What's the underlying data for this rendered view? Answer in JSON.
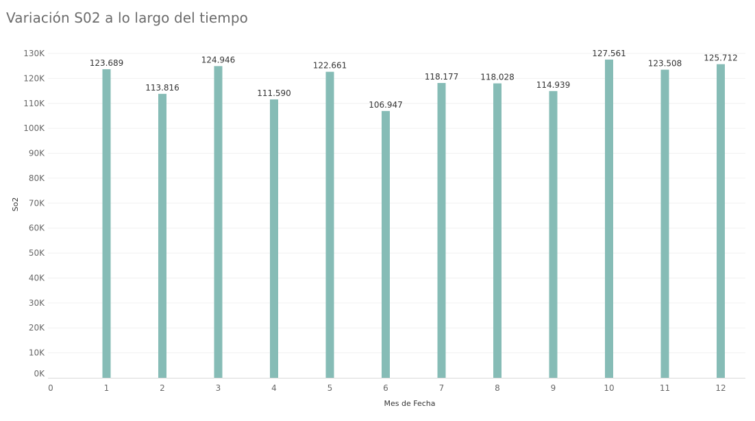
{
  "chart_data": {
    "type": "bar",
    "title": "Variación S02 a lo largo del tiempo",
    "xlabel": "Mes de Fecha",
    "ylabel": "So2",
    "x_ticks": [
      "0",
      "1",
      "2",
      "3",
      "4",
      "5",
      "6",
      "7",
      "8",
      "9",
      "10",
      "11",
      "12"
    ],
    "y_ticks": [
      "0K",
      "10K",
      "20K",
      "30K",
      "40K",
      "50K",
      "60K",
      "70K",
      "80K",
      "90K",
      "100K",
      "110K",
      "120K",
      "130K"
    ],
    "y_tick_values": [
      0,
      10000,
      20000,
      30000,
      40000,
      50000,
      60000,
      70000,
      80000,
      90000,
      100000,
      110000,
      120000,
      130000
    ],
    "xlim": [
      0,
      12.5
    ],
    "ylim": [
      0,
      130000
    ],
    "grid": true,
    "bar_color": "#86bcb6",
    "points": [
      {
        "x": 1,
        "value": 123689,
        "label": "123.689"
      },
      {
        "x": 2,
        "value": 113816,
        "label": "113.816"
      },
      {
        "x": 3,
        "value": 124946,
        "label": "124.946"
      },
      {
        "x": 4,
        "value": 111590,
        "label": "111.590"
      },
      {
        "x": 5,
        "value": 122661,
        "label": "122.661"
      },
      {
        "x": 6,
        "value": 106947,
        "label": "106.947"
      },
      {
        "x": 7,
        "value": 118177,
        "label": "118.177"
      },
      {
        "x": 8,
        "value": 118028,
        "label": "118.028"
      },
      {
        "x": 9,
        "value": 114939,
        "label": "114.939"
      },
      {
        "x": 10,
        "value": 127561,
        "label": "127.561"
      },
      {
        "x": 11,
        "value": 123508,
        "label": "123.508"
      },
      {
        "x": 12,
        "value": 125712,
        "label": "125.712"
      }
    ]
  }
}
